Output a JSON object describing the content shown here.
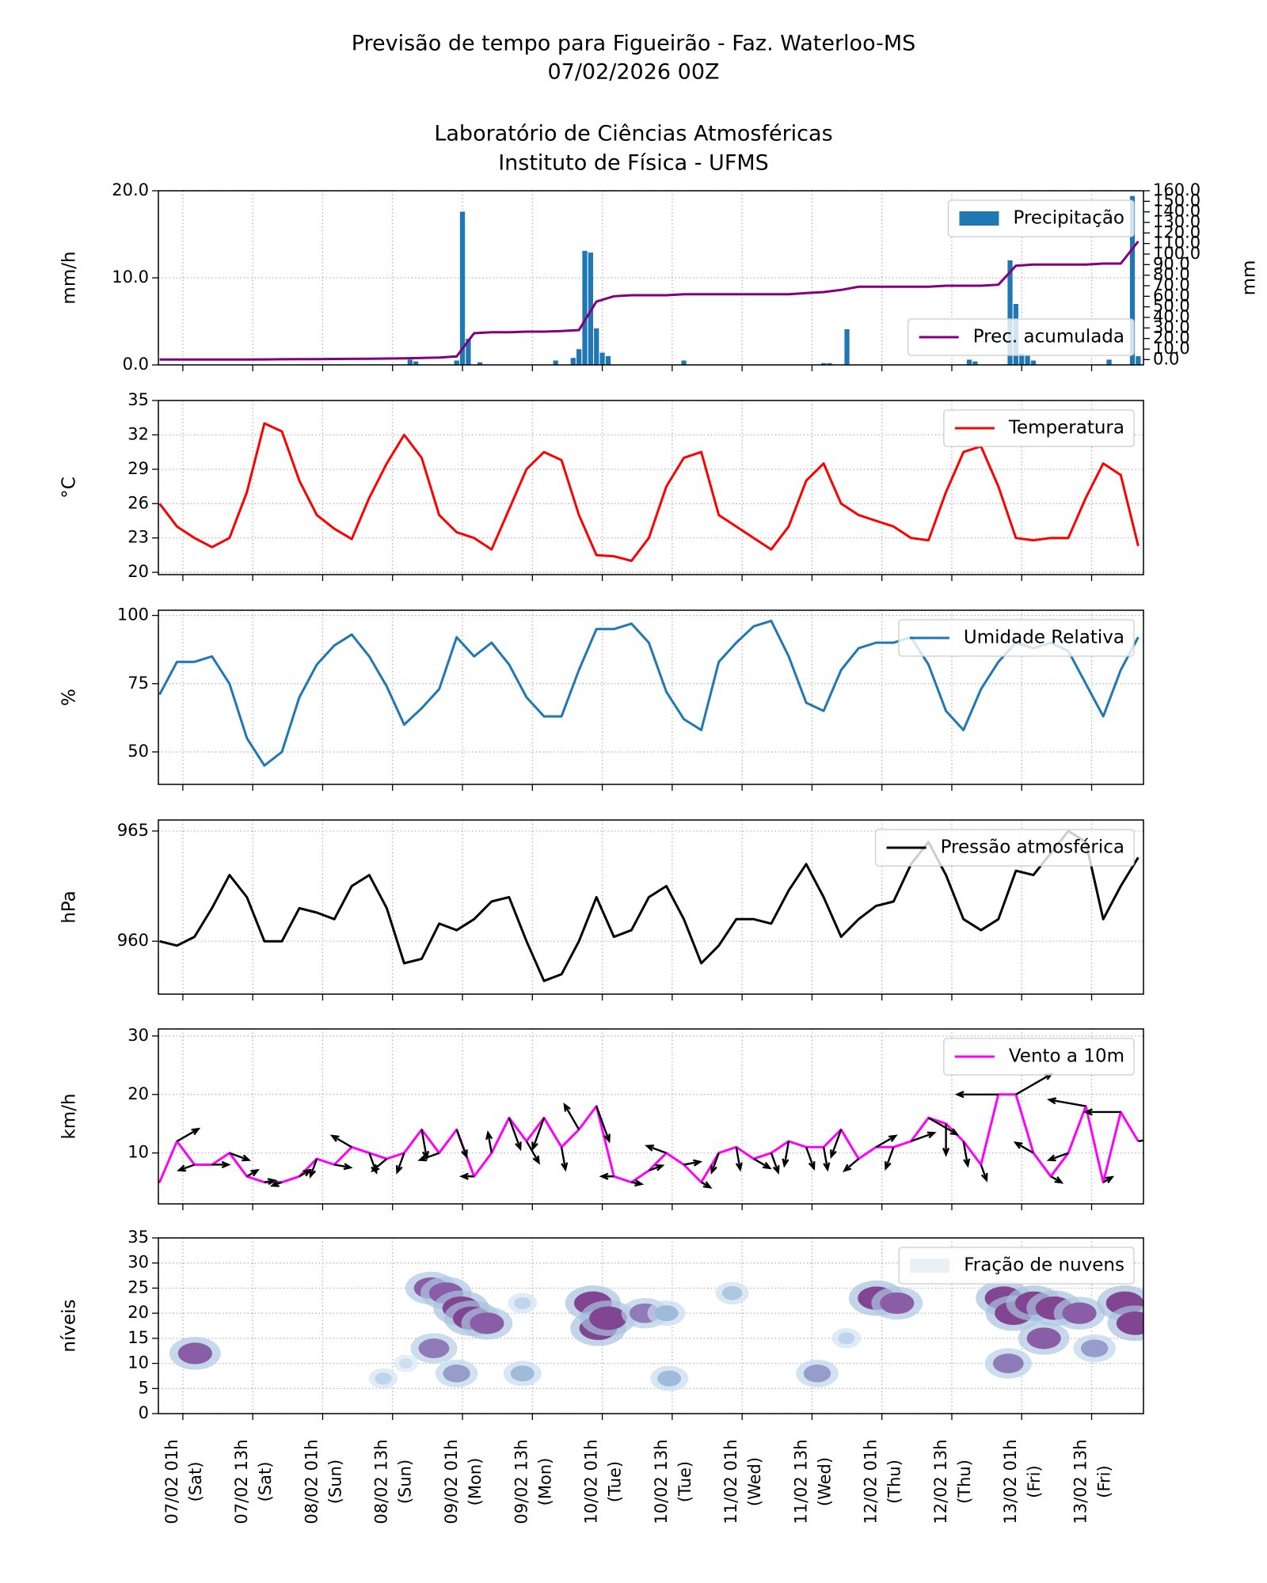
{
  "header": {
    "title": [
      "Previsão de tempo para Figueirão - Faz. Waterloo-MS",
      "07/02/2026 00Z",
      "Laboratório de Ciências Atmosféricas",
      "Instituto de Física - UFMS"
    ]
  },
  "x_axis": {
    "xlim": [
      -4.2,
      164.9
    ],
    "xticks": [
      {
        "value": 0,
        "label": [
          "07/02 01h",
          "(Sat)"
        ]
      },
      {
        "value": 12,
        "label": [
          "07/02 13h",
          "(Sat)"
        ]
      },
      {
        "value": 24,
        "label": [
          "08/02 01h",
          "(Sun)"
        ]
      },
      {
        "value": 36,
        "label": [
          "08/02 13h",
          "(Sun)"
        ]
      },
      {
        "value": 48,
        "label": [
          "09/02 01h",
          "(Mon)"
        ]
      },
      {
        "value": 60,
        "label": [
          "09/02 13h",
          "(Mon)"
        ]
      },
      {
        "value": 72,
        "label": [
          "10/02 01h",
          "(Tue)"
        ]
      },
      {
        "value": 84,
        "label": [
          "10/02 13h",
          "(Tue)"
        ]
      },
      {
        "value": 96,
        "label": [
          "11/02 01h",
          "(Wed)"
        ]
      },
      {
        "value": 108,
        "label": [
          "11/02 13h",
          "(Wed)"
        ]
      },
      {
        "value": 120,
        "label": [
          "12/02 01h",
          "(Thu)"
        ]
      },
      {
        "value": 132,
        "label": [
          "12/02 13h",
          "(Thu)"
        ]
      },
      {
        "value": 144,
        "label": [
          "13/02 01h",
          "(Fri)"
        ]
      },
      {
        "value": 156,
        "label": [
          "13/02 13h",
          "(Fri)"
        ]
      }
    ]
  },
  "time": [
    -4,
    -1,
    2,
    5,
    8,
    11,
    14,
    17,
    20,
    23,
    26,
    29,
    32,
    35,
    38,
    41,
    44,
    47,
    50,
    53,
    56,
    59,
    62,
    65,
    68,
    71,
    74,
    77,
    80,
    83,
    86,
    89,
    92,
    95,
    98,
    101,
    104,
    107,
    110,
    113,
    116,
    119,
    122,
    125,
    128,
    131,
    134,
    137,
    140,
    143,
    146,
    149,
    152,
    155,
    158,
    161,
    164
  ],
  "chart_data": [
    {
      "type": "bar",
      "ylabel": "mm/h",
      "y2label": "mm",
      "ylim": [
        0,
        20
      ],
      "yticks": [
        {
          "value": 0,
          "label": "0.0"
        },
        {
          "value": 10,
          "label": "10.0"
        },
        {
          "value": 20,
          "label": "20.0"
        }
      ],
      "y2lim": [
        -5,
        160
      ],
      "y2ticks": [
        {
          "value": 0,
          "label": "0.0"
        },
        {
          "value": 10,
          "label": "10.0"
        },
        {
          "value": 20,
          "label": "20.0"
        },
        {
          "value": 30,
          "label": "30.0"
        },
        {
          "value": 40,
          "label": "40.0"
        },
        {
          "value": 50,
          "label": "50.0"
        },
        {
          "value": 60,
          "label": "60.0"
        },
        {
          "value": 70,
          "label": "70.0"
        },
        {
          "value": 80,
          "label": "80.0"
        },
        {
          "value": 90,
          "label": "90.0"
        },
        {
          "value": 100,
          "label": "100.0"
        },
        {
          "value": 110,
          "label": "110.0"
        },
        {
          "value": 120,
          "label": "120.0"
        },
        {
          "value": 130,
          "label": "130.0"
        },
        {
          "value": 140,
          "label": "140.0"
        },
        {
          "value": 150,
          "label": "150.0"
        },
        {
          "value": 160,
          "label": "160.0"
        }
      ],
      "grid": true,
      "series": [
        {
          "name": "Precipitação",
          "color": "#1f77b4",
          "legend": "upper right",
          "x": [
            39,
            40,
            47,
            48,
            49,
            51,
            64,
            67,
            68,
            69,
            70,
            71,
            72,
            73,
            86,
            110,
            111,
            114,
            135,
            136,
            142,
            143,
            144,
            145,
            146,
            159,
            163,
            164
          ],
          "values": [
            0.6,
            0.4,
            0.5,
            17.6,
            3.0,
            0.3,
            0.5,
            0.8,
            1.8,
            13.1,
            12.9,
            4.2,
            1.4,
            1.0,
            0.5,
            0.2,
            0.2,
            4.1,
            0.6,
            0.4,
            12.0,
            7.0,
            1.3,
            1.1,
            0.5,
            0.6,
            19.4,
            1.0
          ]
        },
        {
          "name": "Prec. acumulada",
          "color": "#800080",
          "axis": "y2",
          "legend": "lower right",
          "values": [
            0,
            0,
            0,
            0,
            0,
            0.1,
            0.2,
            0.3,
            0.4,
            0.5,
            0.6,
            0.7,
            0.8,
            1,
            1.2,
            1.5,
            2,
            3,
            25,
            26,
            26,
            26.5,
            26.5,
            27,
            28,
            55,
            60,
            61,
            61,
            61,
            62,
            62,
            62,
            62,
            62,
            62,
            62,
            63,
            64,
            66,
            69,
            69,
            69,
            69,
            69,
            70,
            70,
            70,
            71,
            89,
            90,
            90,
            90,
            90,
            91,
            91,
            112
          ]
        }
      ]
    },
    {
      "type": "line",
      "ylabel": "°C",
      "ylim": [
        19.8,
        35
      ],
      "yticks": [
        20,
        23,
        26,
        29,
        32,
        35
      ],
      "grid": true,
      "legend": "upper right",
      "series": [
        {
          "name": "Temperatura",
          "color": "#ff0000",
          "values": [
            26,
            24,
            23,
            22.2,
            23,
            27,
            33,
            32.3,
            28,
            25,
            23.8,
            22.9,
            26.5,
            29.5,
            32,
            30,
            25,
            23.5,
            23,
            22,
            25.5,
            29,
            30.5,
            29.8,
            25,
            21.5,
            21.4,
            21,
            23,
            27.5,
            30,
            30.5,
            25,
            24,
            23,
            22,
            24,
            28,
            29.5,
            26,
            25,
            24.5,
            24,
            23,
            22.8,
            27,
            30.5,
            31,
            27.5,
            23,
            22.8,
            23,
            23,
            26.5,
            29.5,
            28.5,
            22.3
          ]
        }
      ]
    },
    {
      "type": "line",
      "ylabel": "%",
      "ylim": [
        38.1,
        101.9
      ],
      "yticks": [
        50,
        75,
        100
      ],
      "grid": true,
      "legend": "upper right",
      "series": [
        {
          "name": "Umidade Relativa",
          "color": "#1f77b4",
          "values": [
            71,
            83,
            83,
            85,
            75,
            55,
            45,
            50,
            70,
            82,
            89,
            93,
            85,
            74,
            60,
            66,
            73,
            92,
            85,
            90,
            82,
            70,
            63,
            63,
            80,
            95,
            95,
            97,
            90,
            72,
            62,
            58,
            83,
            90,
            96,
            98,
            85,
            68,
            65,
            80,
            88,
            90,
            90,
            92,
            82,
            65,
            58,
            73,
            83,
            90,
            88,
            90,
            87,
            75,
            63,
            80,
            92
          ]
        }
      ]
    },
    {
      "type": "line",
      "ylabel": "hPa",
      "ylim": [
        957.6,
        965.5
      ],
      "yticks": [
        960,
        965
      ],
      "grid": true,
      "legend": "upper right",
      "series": [
        {
          "name": "Pressão atmosférica",
          "color": "#000000",
          "values": [
            960,
            959.8,
            960.2,
            961.5,
            963,
            962,
            960,
            960,
            961.5,
            961.3,
            961,
            962.5,
            963,
            961.5,
            959,
            959.2,
            960.8,
            960.5,
            961,
            961.8,
            962,
            960,
            958.2,
            958.5,
            960,
            962,
            960.2,
            960.5,
            962,
            962.5,
            961,
            959,
            959.8,
            961,
            961,
            960.8,
            962.3,
            963.5,
            962,
            960.2,
            961,
            961.6,
            961.8,
            963.5,
            964.5,
            963,
            961,
            960.5,
            961,
            963.2,
            963,
            964,
            965,
            964.5,
            961,
            962.5,
            963.8
          ]
        }
      ]
    },
    {
      "type": "line",
      "ylabel": "km/h",
      "ylim": [
        1.3,
        31.2
      ],
      "yticks": [
        10,
        20,
        30
      ],
      "grid": true,
      "legend": "upper right",
      "arrow_color": "#000000",
      "series": [
        {
          "name": "Vento a 10m",
          "color": "#ff00ff",
          "values": [
            5,
            12,
            8,
            8,
            10,
            6,
            5,
            5,
            6,
            9,
            8,
            11,
            10,
            9,
            10,
            14,
            10,
            14,
            6,
            10,
            16,
            12,
            16,
            11,
            14,
            18,
            6,
            5,
            7,
            10,
            8,
            5,
            10,
            11,
            9,
            10,
            12,
            11,
            11,
            14,
            9,
            11,
            11,
            12,
            16,
            15,
            12,
            8,
            20,
            20,
            10,
            6,
            10,
            18,
            5,
            17,
            12
          ],
          "direction": [
            270,
            60,
            250,
            90,
            110,
            60,
            80,
            250,
            60,
            200,
            100,
            300,
            160,
            230,
            200,
            170,
            250,
            160,
            270,
            350,
            160,
            150,
            200,
            170,
            330,
            160,
            270,
            100,
            70,
            290,
            80,
            120,
            200,
            170,
            120,
            160,
            190,
            160,
            170,
            200,
            230,
            60,
            200,
            70,
            120,
            180,
            170,
            160,
            270,
            60,
            300,
            120,
            250,
            280,
            60,
            270,
            80
          ]
        }
      ]
    },
    {
      "type": "contour",
      "name": "Fração de nuvens",
      "ylabel": "níveis",
      "ylim": [
        0,
        35
      ],
      "yticks": [
        0,
        5,
        10,
        15,
        20,
        25,
        30,
        35
      ],
      "grid": true,
      "legend": "upper right",
      "colormap": [
        "#e8f0f8",
        "#c6dbef",
        "#9ebcda",
        "#8c6bb1",
        "#7b2b7b"
      ],
      "x": [
        2.1,
        42.6,
        45.2,
        47.8,
        49.6,
        52.2,
        43.1,
        47,
        58.3,
        58.3,
        70.4,
        71.3,
        73,
        79.3,
        83,
        83.5,
        94.3,
        108.9,
        113.9,
        119.1,
        122.6,
        140.9,
        142.6,
        146.1,
        149.6,
        153.9,
        147.8,
        141.7,
        156.5,
        161.7,
        163.5,
        34.4,
        38.3
      ],
      "levels": [
        12,
        25,
        24,
        21,
        19,
        18,
        13,
        8,
        8,
        22,
        22,
        17,
        19,
        20,
        20,
        7,
        24,
        8,
        15,
        23,
        22,
        23,
        20,
        22,
        21,
        20,
        15,
        10,
        13,
        22,
        18,
        7,
        10
      ],
      "values": [
        0.8,
        0.8,
        0.8,
        0.9,
        0.9,
        0.8,
        0.7,
        0.6,
        0.5,
        0.3,
        0.9,
        0.9,
        0.9,
        0.7,
        0.5,
        0.5,
        0.4,
        0.6,
        0.3,
        0.9,
        0.8,
        0.9,
        0.9,
        0.9,
        0.9,
        0.8,
        0.8,
        0.7,
        0.6,
        0.9,
        0.9,
        0.3,
        0.2
      ]
    }
  ]
}
